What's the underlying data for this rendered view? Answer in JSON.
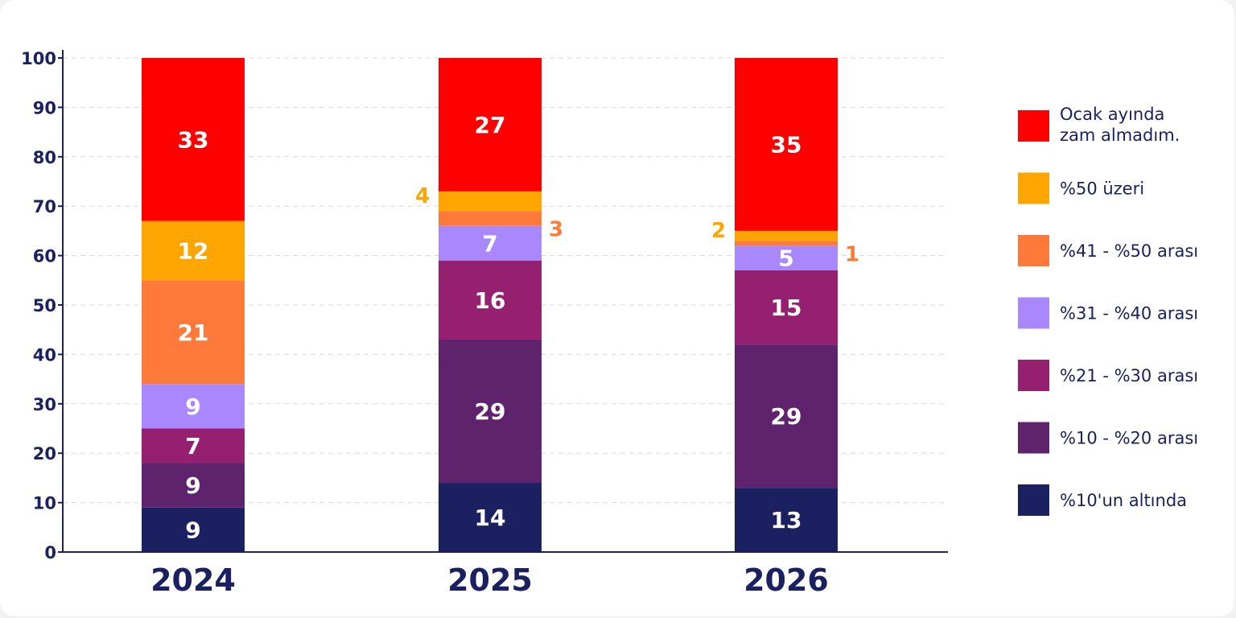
{
  "chart_data": {
    "type": "bar",
    "stacked": true,
    "categories": [
      "2024",
      "2025",
      "2026"
    ],
    "ylim": [
      0,
      100
    ],
    "yticks": [
      0,
      10,
      20,
      30,
      40,
      50,
      60,
      70,
      80,
      90,
      100
    ],
    "grid": true,
    "legend_position": "right",
    "series": [
      {
        "name": "%10'un altında",
        "color": "#1b2160",
        "values": [
          9,
          14,
          13
        ]
      },
      {
        "name": "%10 - %20 arası",
        "color": "#5f236e",
        "values": [
          9,
          29,
          29
        ]
      },
      {
        "name": "%21 - %30 arası",
        "color": "#95206f",
        "values": [
          7,
          16,
          15
        ]
      },
      {
        "name": "%31 - %40 arası",
        "color": "#a987fc",
        "values": [
          9,
          7,
          5
        ]
      },
      {
        "name": "%41 - %50 arası",
        "color": "#ff7a3a",
        "values": [
          21,
          3,
          1
        ]
      },
      {
        "name": "%50 üzeri",
        "color": "#ffa500",
        "values": [
          12,
          4,
          2
        ]
      },
      {
        "name": "Ocak ayında zam almadım.",
        "color": "#ff0000",
        "values": [
          33,
          27,
          35
        ]
      }
    ],
    "legend_order": [
      6,
      5,
      4,
      3,
      2,
      1,
      0
    ]
  }
}
